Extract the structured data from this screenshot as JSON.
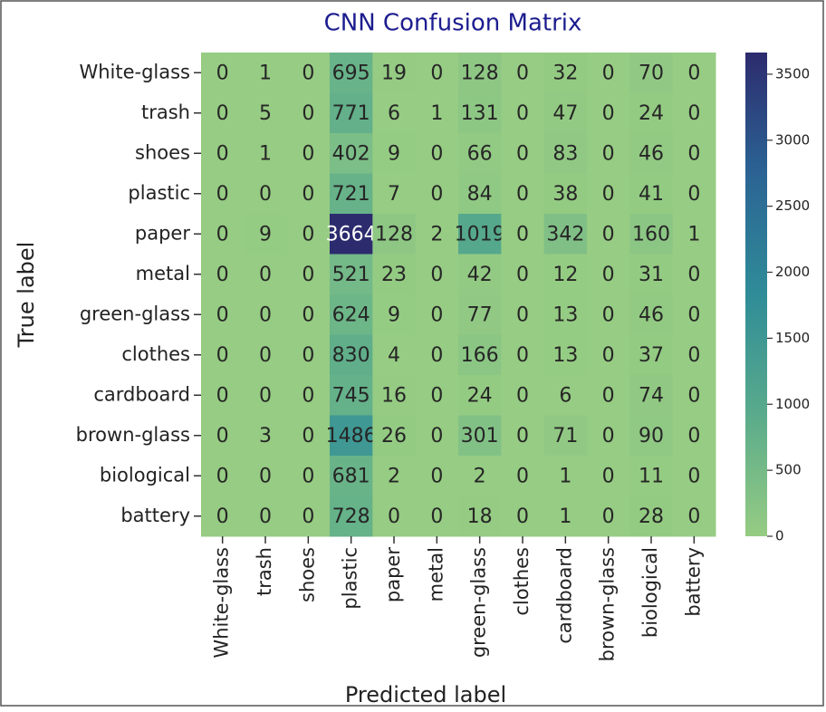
{
  "chart_data": {
    "type": "heatmap",
    "title": "CNN Confusion Matrix",
    "x_label": "Predicted label",
    "y_label": "True label",
    "rows": [
      "White-glass",
      "trash",
      "shoes",
      "plastic",
      "paper",
      "metal",
      "green-glass",
      "clothes",
      "cardboard",
      "brown-glass",
      "biological",
      "battery"
    ],
    "columns": [
      "White-glass",
      "trash",
      "shoes",
      "plastic",
      "paper",
      "metal",
      "green-glass",
      "clothes",
      "cardboard",
      "brown-glass",
      "biological",
      "battery"
    ],
    "matrix": [
      [
        0,
        1,
        0,
        695,
        19,
        0,
        128,
        0,
        32,
        0,
        70,
        0
      ],
      [
        0,
        5,
        0,
        771,
        6,
        1,
        131,
        0,
        47,
        0,
        24,
        0
      ],
      [
        0,
        1,
        0,
        402,
        9,
        0,
        66,
        0,
        83,
        0,
        46,
        0
      ],
      [
        0,
        0,
        0,
        721,
        7,
        0,
        84,
        0,
        38,
        0,
        41,
        0
      ],
      [
        0,
        9,
        0,
        3664,
        128,
        2,
        1019,
        0,
        342,
        0,
        160,
        1
      ],
      [
        0,
        0,
        0,
        521,
        23,
        0,
        42,
        0,
        12,
        0,
        31,
        0
      ],
      [
        0,
        0,
        0,
        624,
        9,
        0,
        77,
        0,
        13,
        0,
        46,
        0
      ],
      [
        0,
        0,
        0,
        830,
        4,
        0,
        166,
        0,
        13,
        0,
        37,
        0
      ],
      [
        0,
        0,
        0,
        745,
        16,
        0,
        24,
        0,
        6,
        0,
        74,
        0
      ],
      [
        0,
        3,
        0,
        1486,
        26,
        0,
        301,
        0,
        71,
        0,
        90,
        0
      ],
      [
        0,
        0,
        0,
        681,
        2,
        0,
        2,
        0,
        1,
        0,
        11,
        0
      ],
      [
        0,
        0,
        0,
        728,
        0,
        0,
        18,
        0,
        1,
        0,
        28,
        0
      ]
    ],
    "clim": [
      0,
      3664
    ],
    "cbar_ticks": [
      0,
      500,
      1000,
      1500,
      2000,
      2500,
      3000,
      3500
    ],
    "colormap": [
      "#96cc83",
      "#5aab8b",
      "#2f8c98",
      "#2b6494",
      "#2c2b6e"
    ],
    "title_color": "#1c1c8f"
  }
}
